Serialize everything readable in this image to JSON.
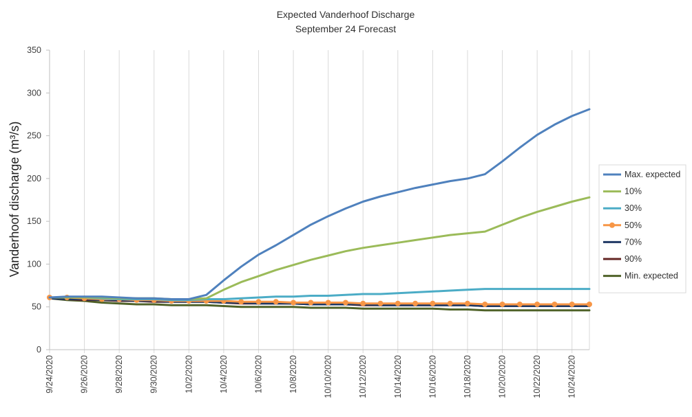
{
  "chart_data": {
    "type": "line",
    "title": "Expected Vanderhoof Discharge",
    "subtitle": "September 24 Forecast",
    "xlabel": "",
    "ylabel": "Vanderhoof discharge (m³/s)",
    "ylim": [
      0,
      350
    ],
    "yticks": [
      0,
      50,
      100,
      150,
      200,
      250,
      300,
      350
    ],
    "x": [
      "9/24/2020",
      "9/25/2020",
      "9/26/2020",
      "9/27/2020",
      "9/28/2020",
      "9/29/2020",
      "9/30/2020",
      "10/1/2020",
      "10/2/2020",
      "10/3/2020",
      "10/4/2020",
      "10/5/2020",
      "10/6/2020",
      "10/7/2020",
      "10/8/2020",
      "10/9/2020",
      "10/10/2020",
      "10/11/2020",
      "10/12/2020",
      "10/13/2020",
      "10/14/2020",
      "10/15/2020",
      "10/16/2020",
      "10/17/2020",
      "10/18/2020",
      "10/19/2020",
      "10/20/2020",
      "10/21/2020",
      "10/22/2020",
      "10/23/2020",
      "10/24/2020",
      "10/25/2020"
    ],
    "xtick_labels": [
      "9/24/2020",
      "9/26/2020",
      "9/28/2020",
      "9/30/2020",
      "10/2/2020",
      "10/4/2020",
      "10/6/2020",
      "10/8/2020",
      "10/10/2020",
      "10/12/2020",
      "10/14/2020",
      "10/16/2020",
      "10/18/2020",
      "10/20/2020",
      "10/22/2020",
      "10/24/2020"
    ],
    "grid": {
      "vertical": true,
      "horizontal": false
    },
    "legend_position": "right",
    "series": [
      {
        "name": "Max. expected",
        "color": "#4f81bd",
        "marker": false,
        "values": [
          61,
          62,
          62,
          62,
          61,
          60,
          60,
          59,
          59,
          64,
          81,
          97,
          111,
          122,
          134,
          146,
          156,
          165,
          173,
          179,
          184,
          189,
          193,
          197,
          200,
          205,
          220,
          236,
          251,
          263,
          273,
          281
        ]
      },
      {
        "name": "10%",
        "color": "#9bbb59",
        "marker": false,
        "values": [
          61,
          61,
          61,
          61,
          60,
          60,
          60,
          59,
          59,
          60,
          70,
          79,
          86,
          93,
          99,
          105,
          110,
          115,
          119,
          122,
          125,
          128,
          131,
          134,
          136,
          138,
          146,
          154,
          161,
          167,
          173,
          178
        ]
      },
      {
        "name": "30%",
        "color": "#4bacc6",
        "marker": false,
        "values": [
          61,
          61,
          61,
          60,
          59,
          59,
          59,
          58,
          58,
          59,
          59,
          60,
          61,
          62,
          62,
          63,
          63,
          64,
          65,
          65,
          66,
          67,
          68,
          69,
          70,
          71,
          71,
          71,
          71,
          71,
          71,
          71
        ]
      },
      {
        "name": "50%",
        "color": "#f79646",
        "marker": true,
        "values": [
          61,
          61,
          60,
          59,
          59,
          58,
          58,
          57,
          57,
          57,
          57,
          56,
          56,
          56,
          55,
          55,
          55,
          55,
          54,
          54,
          54,
          54,
          54,
          54,
          54,
          53,
          53,
          53,
          53,
          53,
          53,
          53
        ]
      },
      {
        "name": "70%",
        "color": "#1f3864",
        "marker": false,
        "values": [
          60,
          59,
          59,
          58,
          58,
          57,
          57,
          56,
          56,
          56,
          55,
          55,
          54,
          54,
          54,
          53,
          53,
          53,
          53,
          52,
          52,
          52,
          52,
          52,
          52,
          51,
          51,
          51,
          51,
          51,
          51,
          51
        ]
      },
      {
        "name": "90%",
        "color": "#632523",
        "marker": false,
        "values": [
          60,
          59,
          58,
          58,
          57,
          57,
          56,
          56,
          56,
          56,
          55,
          54,
          54,
          54,
          54,
          53,
          53,
          53,
          52,
          52,
          52,
          52,
          52,
          52,
          52,
          51,
          51,
          51,
          51,
          51,
          51,
          51
        ]
      },
      {
        "name": "Min. expected",
        "color": "#4f6228",
        "marker": false,
        "values": [
          60,
          58,
          57,
          55,
          54,
          53,
          53,
          52,
          52,
          52,
          51,
          50,
          50,
          50,
          50,
          49,
          49,
          49,
          48,
          48,
          48,
          48,
          48,
          47,
          47,
          46,
          46,
          46,
          46,
          46,
          46,
          46
        ]
      }
    ]
  }
}
